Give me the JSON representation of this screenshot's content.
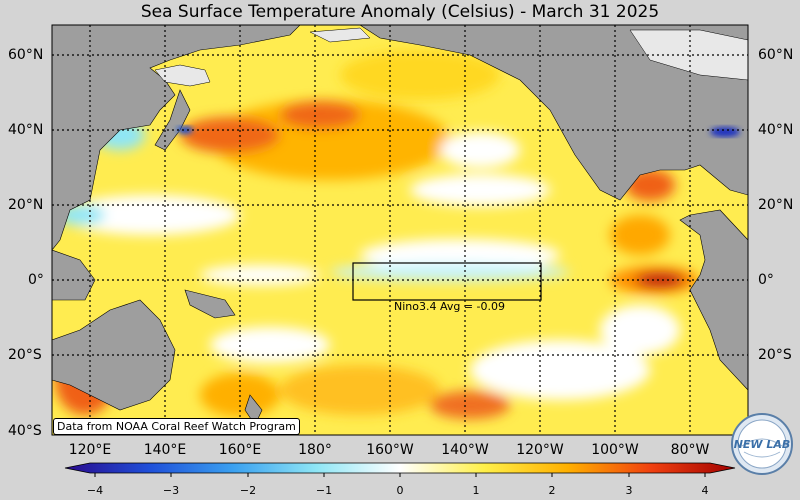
{
  "title": "Sea Surface Temperature Anomaly (Celsius) - March 31 2025",
  "lat_labels": [
    "60°N",
    "40°N",
    "20°N",
    "0°",
    "20°S",
    "40°S"
  ],
  "lon_labels": [
    "120°E",
    "140°E",
    "160°E",
    "180°",
    "160°W",
    "140°W",
    "120°W",
    "100°W",
    "80°W"
  ],
  "colorbar": {
    "ticks": [
      "−4",
      "−3",
      "−2",
      "−1",
      "0",
      "1",
      "2",
      "3",
      "4"
    ],
    "range": [
      -4,
      4
    ],
    "stops": [
      "#2a0a8c",
      "#1f4fd9",
      "#3aa0f0",
      "#8fe6f5",
      "#ffffff",
      "#fff04a",
      "#ffb000",
      "#f04010",
      "#a00000"
    ]
  },
  "nino_box": {
    "label": "Nino3.4 Avg = -0.09",
    "lon_range": [
      "170°W",
      "120°W"
    ],
    "lat_range": [
      "5°S",
      "5°N"
    ]
  },
  "credit": "Data from NOAA Coral Reef Watch Program",
  "logo_text": "NEW LAB",
  "colors": {
    "land": "#9e9e9e",
    "ice": "#e8e8e8",
    "background": "#d4d4d4"
  }
}
